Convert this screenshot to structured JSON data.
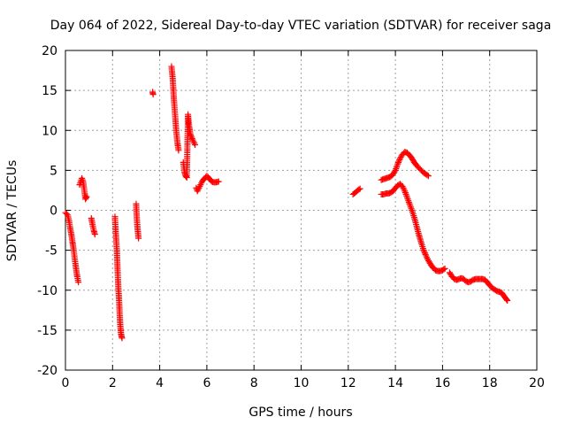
{
  "chart_data": {
    "type": "scatter",
    "title": "Day 064 of 2022, Sidereal Day-to-day VTEC variation (SDTVAR) for receiver saga",
    "xlabel": "GPS time / hours",
    "ylabel": "SDTVAR / TECUs",
    "xlim": [
      0,
      20
    ],
    "ylim": [
      -20,
      20
    ],
    "grid": true,
    "marker": "+",
    "marker_color": "#ff0000",
    "x_ticks": [
      0,
      2,
      4,
      6,
      8,
      10,
      12,
      14,
      16,
      18,
      20
    ],
    "y_ticks": [
      -20,
      -15,
      -10,
      -5,
      0,
      5,
      10,
      15,
      20
    ],
    "series": [
      {
        "name": "SDTVAR",
        "segments": [
          [
            [
              0.0,
              -0.3
            ],
            [
              0.1,
              -0.6
            ],
            [
              0.15,
              -1.3
            ],
            [
              0.2,
              -2.2
            ],
            [
              0.25,
              -3.0
            ],
            [
              0.3,
              -4.0
            ],
            [
              0.35,
              -5.0
            ],
            [
              0.4,
              -6.2
            ],
            [
              0.45,
              -7.3
            ],
            [
              0.5,
              -8.3
            ],
            [
              0.55,
              -9.0
            ]
          ],
          [
            [
              0.6,
              3.2
            ],
            [
              0.65,
              3.6
            ],
            [
              0.7,
              4.0
            ],
            [
              0.75,
              3.6
            ],
            [
              0.8,
              2.5
            ],
            [
              0.85,
              1.4
            ],
            [
              0.9,
              1.7
            ]
          ],
          [
            [
              1.1,
              -1.0
            ],
            [
              1.15,
              -1.8
            ],
            [
              1.2,
              -2.5
            ],
            [
              1.25,
              -3.0
            ]
          ],
          [
            [
              2.1,
              -0.8
            ],
            [
              2.12,
              -2.0
            ],
            [
              2.15,
              -3.5
            ],
            [
              2.18,
              -5.0
            ],
            [
              2.2,
              -6.5
            ],
            [
              2.22,
              -8.0
            ],
            [
              2.25,
              -10.0
            ],
            [
              2.28,
              -11.5
            ],
            [
              2.3,
              -13.0
            ],
            [
              2.33,
              -14.5
            ],
            [
              2.36,
              -15.5
            ],
            [
              2.4,
              -16.0
            ]
          ],
          [
            [
              3.0,
              0.8
            ],
            [
              3.02,
              -0.5
            ],
            [
              3.05,
              -2.0
            ],
            [
              3.1,
              -3.5
            ]
          ],
          [
            [
              3.7,
              14.8
            ],
            [
              3.72,
              14.5
            ]
          ],
          [
            [
              4.5,
              18.0
            ],
            [
              4.55,
              16.5
            ],
            [
              4.6,
              14.0
            ],
            [
              4.65,
              12.0
            ],
            [
              4.7,
              10.0
            ],
            [
              4.75,
              8.5
            ],
            [
              4.8,
              7.5
            ]
          ],
          [
            [
              5.0,
              6.0
            ],
            [
              5.05,
              4.8
            ],
            [
              5.1,
              4.3
            ],
            [
              5.15,
              4.1
            ],
            [
              5.2,
              12.0
            ],
            [
              5.25,
              10.5
            ],
            [
              5.3,
              9.5
            ],
            [
              5.4,
              8.8
            ],
            [
              5.5,
              8.2
            ]
          ],
          [
            [
              5.55,
              2.8
            ],
            [
              5.6,
              2.4
            ],
            [
              5.7,
              3.0
            ],
            [
              5.8,
              3.6
            ],
            [
              5.9,
              4.0
            ],
            [
              6.0,
              4.3
            ],
            [
              6.1,
              4.0
            ],
            [
              6.2,
              3.6
            ],
            [
              6.3,
              3.5
            ],
            [
              6.4,
              3.5
            ],
            [
              6.5,
              3.6
            ]
          ],
          [
            [
              12.2,
              2.0
            ],
            [
              12.3,
              2.2
            ],
            [
              12.4,
              2.5
            ],
            [
              12.5,
              2.7
            ]
          ],
          [
            [
              13.4,
              3.8
            ],
            [
              13.5,
              3.9
            ],
            [
              13.6,
              4.0
            ],
            [
              13.7,
              4.1
            ],
            [
              13.8,
              4.2
            ],
            [
              13.9,
              4.5
            ],
            [
              14.0,
              5.0
            ],
            [
              14.1,
              5.8
            ],
            [
              14.2,
              6.5
            ],
            [
              14.3,
              7.0
            ],
            [
              14.4,
              7.3
            ],
            [
              14.5,
              7.2
            ],
            [
              14.6,
              6.9
            ],
            [
              14.7,
              6.5
            ],
            [
              14.8,
              6.0
            ],
            [
              14.9,
              5.6
            ],
            [
              15.0,
              5.3
            ],
            [
              15.1,
              5.0
            ],
            [
              15.2,
              4.7
            ],
            [
              15.3,
              4.5
            ],
            [
              15.4,
              4.3
            ]
          ],
          [
            [
              13.4,
              2.0
            ],
            [
              13.5,
              2.0
            ],
            [
              13.6,
              2.1
            ],
            [
              13.7,
              2.1
            ],
            [
              13.8,
              2.2
            ],
            [
              13.9,
              2.4
            ],
            [
              14.0,
              2.8
            ],
            [
              14.1,
              3.1
            ],
            [
              14.2,
              3.3
            ],
            [
              14.3,
              3.0
            ],
            [
              14.4,
              2.4
            ],
            [
              14.5,
              1.6
            ],
            [
              14.6,
              0.8
            ],
            [
              14.7,
              0.0
            ],
            [
              14.8,
              -0.9
            ],
            [
              14.9,
              -2.0
            ],
            [
              15.0,
              -3.1
            ],
            [
              15.1,
              -4.1
            ],
            [
              15.2,
              -5.0
            ],
            [
              15.3,
              -5.7
            ],
            [
              15.4,
              -6.3
            ],
            [
              15.5,
              -6.8
            ],
            [
              15.6,
              -7.2
            ],
            [
              15.7,
              -7.5
            ],
            [
              15.8,
              -7.6
            ],
            [
              15.9,
              -7.6
            ],
            [
              16.0,
              -7.5
            ],
            [
              16.1,
              -7.3
            ]
          ],
          [
            [
              16.3,
              -7.8
            ],
            [
              16.4,
              -8.3
            ],
            [
              16.5,
              -8.6
            ],
            [
              16.6,
              -8.7
            ],
            [
              16.7,
              -8.6
            ],
            [
              16.8,
              -8.5
            ],
            [
              16.9,
              -8.6
            ],
            [
              17.0,
              -8.9
            ],
            [
              17.1,
              -9.0
            ],
            [
              17.2,
              -8.9
            ],
            [
              17.3,
              -8.7
            ],
            [
              17.4,
              -8.6
            ],
            [
              17.5,
              -8.6
            ],
            [
              17.6,
              -8.6
            ],
            [
              17.7,
              -8.6
            ],
            [
              17.8,
              -8.7
            ],
            [
              17.9,
              -9.0
            ],
            [
              18.0,
              -9.4
            ],
            [
              18.1,
              -9.7
            ],
            [
              18.2,
              -9.9
            ],
            [
              18.3,
              -10.1
            ],
            [
              18.4,
              -10.2
            ],
            [
              18.5,
              -10.3
            ],
            [
              18.6,
              -10.7
            ],
            [
              18.7,
              -11.1
            ],
            [
              18.75,
              -11.3
            ]
          ]
        ]
      }
    ]
  }
}
